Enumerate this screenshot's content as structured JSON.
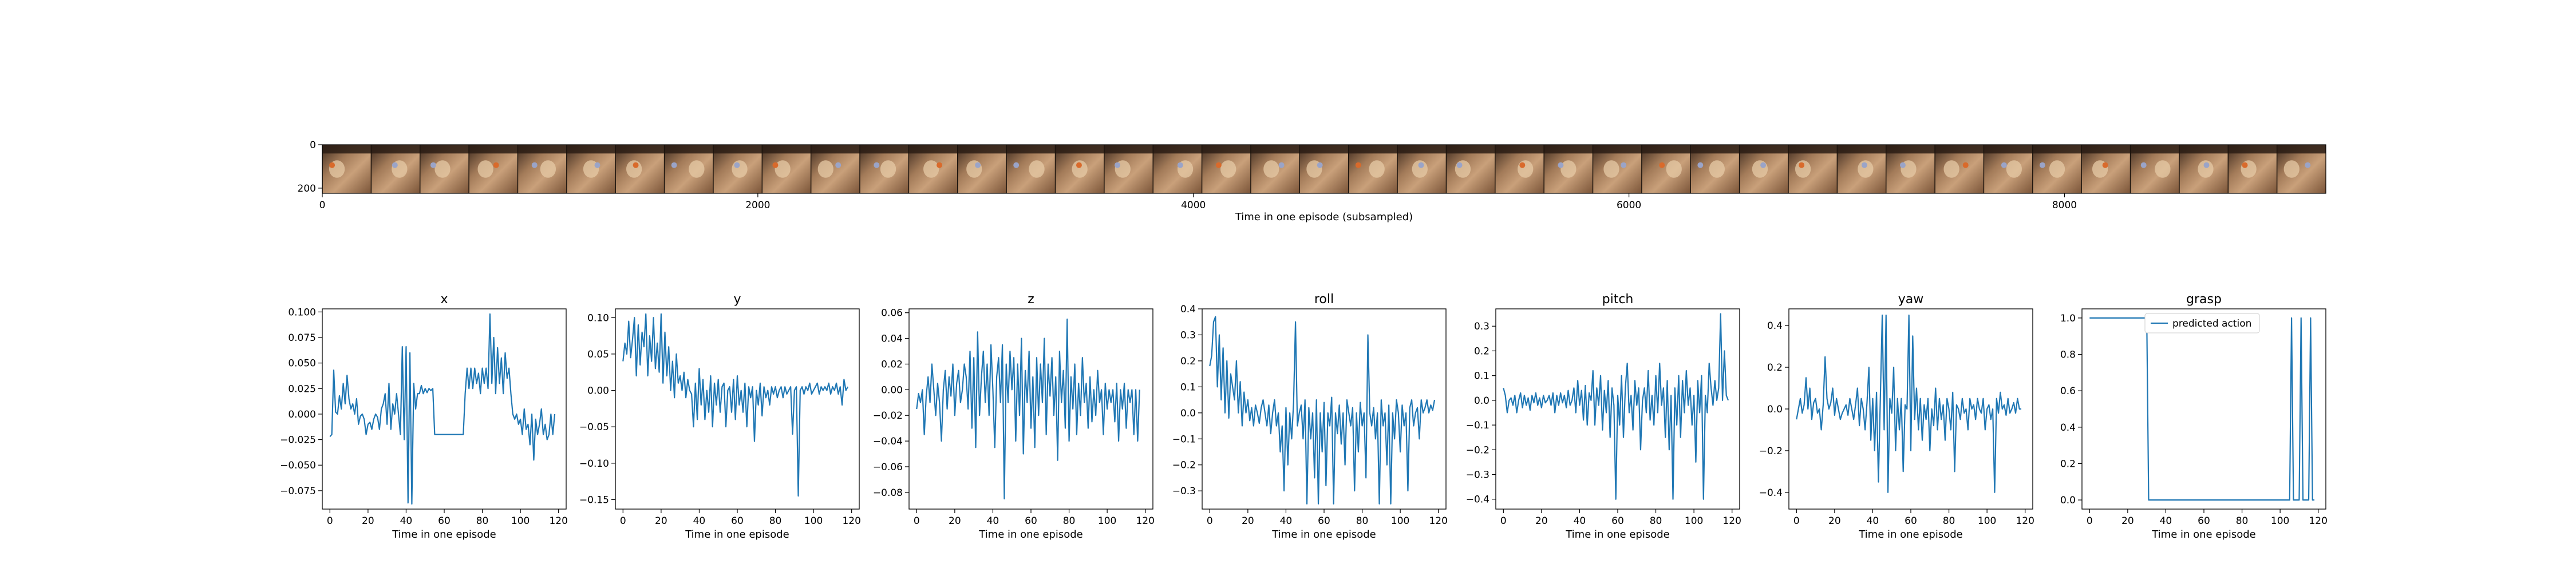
{
  "filmstrip": {
    "xlabel": "Time in one episode (subsampled)",
    "xticks": [
      0,
      2000,
      4000,
      6000,
      8000
    ],
    "yticks": [
      0,
      200
    ],
    "xlim": [
      0,
      9200
    ],
    "ylim": [
      0,
      224
    ],
    "frames": 41
  },
  "chart_data": [
    {
      "type": "line",
      "title": "x",
      "xlabel": "Time in one episode",
      "xticks": [
        0,
        20,
        40,
        60,
        80,
        100,
        120
      ],
      "xlim": [
        -4,
        124
      ],
      "ylim": [
        -0.093,
        0.103
      ],
      "yticks": [
        -0.075,
        -0.05,
        -0.025,
        0.0,
        0.025,
        0.05,
        0.075,
        0.1
      ],
      "ytick_labels": [
        "−0.075",
        "−0.050",
        "−0.025",
        "0.000",
        "0.025",
        "0.050",
        "0.075",
        "0.100"
      ],
      "series": [
        {
          "values": [
            -0.022,
            -0.02,
            0.043,
            0.002,
            0.0,
            0.018,
            0.005,
            0.03,
            0.01,
            0.038,
            0.015,
            0.005,
            0.01,
            0.0,
            0.015,
            -0.01,
            -0.002,
            0.0,
            -0.005,
            -0.02,
            -0.01,
            -0.008,
            -0.015,
            -0.005,
            0.0,
            -0.003,
            -0.015,
            0.005,
            0.01,
            0.02,
            -0.01,
            0.03,
            -0.015,
            0.01,
            0.0,
            0.02,
            0.0,
            -0.02,
            0.066,
            -0.025,
            0.066,
            -0.087,
            0.06,
            -0.088,
            0.03,
            0.005,
            0.02,
            0.02,
            0.028,
            0.02,
            0.025,
            0.021,
            0.025,
            0.023,
            0.025,
            -0.02,
            -0.02,
            -0.02,
            -0.02,
            -0.02,
            -0.02,
            -0.02,
            -0.02,
            -0.02,
            -0.02,
            -0.02,
            -0.02,
            -0.02,
            -0.02,
            -0.02,
            -0.02,
            0.02,
            0.045,
            0.025,
            0.045,
            0.025,
            0.045,
            0.03,
            0.04,
            0.02,
            0.045,
            0.03,
            0.045,
            0.025,
            0.098,
            0.03,
            0.075,
            0.02,
            0.065,
            0.03,
            0.055,
            0.02,
            0.06,
            0.035,
            0.045,
            0.02,
            0.0,
            -0.005,
            0.0,
            -0.01,
            -0.005,
            -0.02,
            0.005,
            -0.015,
            -0.01,
            -0.03,
            0.0,
            -0.045,
            -0.005,
            -0.02,
            -0.01,
            0.005,
            -0.02,
            -0.01,
            -0.025,
            -0.02,
            0.0,
            -0.02,
            0.0
          ]
        }
      ]
    },
    {
      "type": "line",
      "title": "y",
      "xlabel": "Time in one episode",
      "xticks": [
        0,
        20,
        40,
        60,
        80,
        100,
        120
      ],
      "xlim": [
        -4,
        124
      ],
      "ylim": [
        -0.163,
        0.112
      ],
      "yticks": [
        -0.15,
        -0.1,
        -0.05,
        0.0,
        0.05,
        0.1
      ],
      "ytick_labels": [
        "−0.15",
        "−0.10",
        "−0.05",
        "0.00",
        "0.05",
        "0.10"
      ],
      "series": [
        {
          "values": [
            0.04,
            0.065,
            0.05,
            0.095,
            0.045,
            0.07,
            0.1,
            0.02,
            0.09,
            0.035,
            0.08,
            0.06,
            0.105,
            0.02,
            0.075,
            0.04,
            0.1,
            0.03,
            0.065,
            0.025,
            0.105,
            0.01,
            0.08,
            0.02,
            0.06,
            0.0,
            0.04,
            -0.01,
            0.05,
            0.01,
            0.02,
            0.0,
            0.025,
            -0.01,
            0.015,
            0.0,
            -0.005,
            -0.05,
            0.01,
            -0.04,
            0.03,
            -0.02,
            0.015,
            -0.04,
            0.0,
            -0.03,
            0.02,
            -0.05,
            0.01,
            -0.02,
            0.015,
            -0.03,
            0.005,
            0.01,
            -0.05,
            0.0,
            0.005,
            -0.03,
            0.015,
            -0.04,
            0.02,
            -0.02,
            0.0,
            -0.03,
            0.01,
            -0.05,
            0.005,
            -0.01,
            0.005,
            -0.07,
            0.0,
            -0.02,
            0.01,
            -0.035,
            0.005,
            -0.01,
            0.0,
            -0.02,
            0.005,
            -0.005,
            0.005,
            -0.01,
            0.0,
            0.005,
            -0.01,
            0.005,
            -0.005,
            0.0,
            0.005,
            -0.06,
            0.0,
            0.005,
            -0.145,
            0.0,
            0.005,
            -0.005,
            0.005,
            0.0,
            0.01,
            -0.005,
            0.0,
            0.005,
            0.01,
            -0.005,
            0.005,
            0.0,
            0.005,
            0.0,
            0.01,
            -0.005,
            0.005,
            0.0,
            0.01,
            -0.005,
            0.005,
            -0.02,
            0.015,
            0.0,
            0.005
          ]
        }
      ]
    },
    {
      "type": "line",
      "title": "z",
      "xlabel": "Time in one episode",
      "xticks": [
        0,
        20,
        40,
        60,
        80,
        100,
        120
      ],
      "xlim": [
        -4,
        124
      ],
      "ylim": [
        -0.093,
        0.063
      ],
      "yticks": [
        -0.08,
        -0.06,
        -0.04,
        -0.02,
        0.0,
        0.02,
        0.04,
        0.06
      ],
      "ytick_labels": [
        "−0.08",
        "−0.06",
        "−0.04",
        "−0.02",
        "0.00",
        "0.02",
        "0.04",
        "0.06"
      ],
      "series": [
        {
          "values": [
            -0.015,
            -0.003,
            -0.01,
            0.0,
            -0.035,
            -0.005,
            0.01,
            -0.01,
            0.02,
            0.0,
            -0.02,
            0.005,
            -0.01,
            -0.04,
            0.0,
            0.015,
            -0.015,
            0.01,
            -0.005,
            0.02,
            -0.02,
            0.005,
            0.015,
            -0.01,
            0.0,
            0.02,
            0.01,
            -0.015,
            0.03,
            -0.03,
            0.025,
            -0.045,
            0.045,
            -0.02,
            0.01,
            0.03,
            -0.01,
            0.02,
            -0.02,
            0.035,
            0.0,
            -0.045,
            0.01,
            0.025,
            -0.01,
            0.035,
            -0.085,
            0.02,
            -0.01,
            0.03,
            0.0,
            0.025,
            -0.04,
            0.02,
            -0.02,
            0.04,
            -0.05,
            0.015,
            -0.01,
            0.03,
            -0.03,
            0.01,
            -0.045,
            0.025,
            -0.02,
            0.02,
            -0.01,
            0.04,
            -0.035,
            0.02,
            -0.005,
            0.025,
            -0.02,
            0.01,
            -0.055,
            0.03,
            -0.01,
            0.015,
            -0.03,
            0.055,
            -0.04,
            0.01,
            -0.015,
            0.02,
            -0.035,
            0.005,
            -0.02,
            0.025,
            -0.01,
            0.005,
            -0.03,
            0.01,
            -0.025,
            0.0,
            -0.02,
            0.015,
            -0.01,
            0.0,
            -0.035,
            0.005,
            -0.015,
            0.0,
            -0.01,
            0.0,
            -0.025,
            0.005,
            -0.04,
            0.0,
            -0.015,
            0.005,
            -0.03,
            0.0,
            -0.01,
            0.0,
            -0.035,
            0.0,
            -0.04,
            0.0
          ]
        }
      ]
    },
    {
      "type": "line",
      "title": "roll",
      "xlabel": "Time in one episode",
      "xticks": [
        0,
        20,
        40,
        60,
        80,
        100,
        120
      ],
      "xlim": [
        -4,
        124
      ],
      "ylim": [
        -0.37,
        0.4
      ],
      "yticks": [
        -0.3,
        -0.2,
        -0.1,
        0.0,
        0.1,
        0.2,
        0.3,
        0.4
      ],
      "ytick_labels": [
        "−0.3",
        "−0.2",
        "−0.1",
        "0.0",
        "0.1",
        "0.2",
        "0.3",
        "0.4"
      ],
      "series": [
        {
          "values": [
            0.18,
            0.22,
            0.35,
            0.37,
            0.1,
            0.3,
            0.05,
            0.25,
            0.0,
            0.2,
            -0.02,
            0.15,
            0.1,
            0.05,
            0.2,
            0.0,
            0.12,
            -0.05,
            0.08,
            0.0,
            0.05,
            -0.03,
            0.02,
            -0.05,
            0.03,
            0.0,
            -0.04,
            0.02,
            0.05,
            0.0,
            -0.05,
            0.03,
            -0.08,
            0.0,
            0.05,
            -0.05,
            0.0,
            -0.15,
            -0.05,
            -0.3,
            0.02,
            -0.2,
            0.0,
            -0.1,
            0.04,
            0.35,
            -0.05,
            0.0,
            0.03,
            -0.1,
            0.05,
            -0.35,
            0.02,
            -0.1,
            0.0,
            -0.25,
            0.05,
            -0.35,
            0.0,
            -0.15,
            0.04,
            -0.28,
            0.0,
            -0.05,
            0.06,
            -0.35,
            0.0,
            -0.08,
            0.03,
            -0.12,
            0.0,
            -0.2,
            0.05,
            0.0,
            -0.05,
            0.02,
            -0.3,
            0.0,
            -0.15,
            0.04,
            -0.05,
            0.0,
            -0.25,
            0.3,
            0.0,
            -0.05,
            0.02,
            -0.1,
            0.0,
            -0.35,
            0.05,
            -0.05,
            0.0,
            -0.2,
            0.03,
            -0.35,
            0.0,
            -0.1,
            0.05,
            0.0,
            -0.15,
            0.03,
            -0.05,
            0.0,
            -0.3,
            0.02,
            0.05,
            -0.05,
            0.0,
            0.02,
            -0.1,
            0.05,
            0.0,
            0.02,
            0.05,
            0.0,
            0.03,
            0.01,
            0.05
          ]
        }
      ]
    },
    {
      "type": "line",
      "title": "pitch",
      "xlabel": "Time in one episode",
      "xticks": [
        0,
        20,
        40,
        60,
        80,
        100,
        120
      ],
      "xlim": [
        -4,
        124
      ],
      "ylim": [
        -0.44,
        0.37
      ],
      "yticks": [
        -0.4,
        -0.3,
        -0.2,
        -0.1,
        0.0,
        0.1,
        0.2,
        0.3
      ],
      "ytick_labels": [
        "−0.4",
        "−0.3",
        "−0.2",
        "−0.1",
        "0.0",
        "0.1",
        "0.2",
        "0.3"
      ],
      "series": [
        {
          "values": [
            0.05,
            0.02,
            -0.05,
            0.0,
            0.01,
            -0.02,
            0.02,
            -0.05,
            0.0,
            0.03,
            -0.03,
            0.02,
            -0.02,
            0.01,
            -0.04,
            0.02,
            -0.01,
            0.03,
            -0.02,
            0.01,
            -0.03,
            0.02,
            -0.01,
            0.0,
            0.02,
            -0.02,
            0.03,
            -0.05,
            0.02,
            -0.02,
            0.03,
            -0.01,
            0.02,
            -0.03,
            0.04,
            -0.02,
            0.0,
            0.05,
            -0.05,
            0.08,
            -0.02,
            0.04,
            -0.08,
            0.06,
            -0.1,
            0.03,
            0.0,
            0.12,
            -0.1,
            0.05,
            -0.02,
            0.1,
            -0.12,
            0.04,
            -0.05,
            0.08,
            -0.15,
            0.05,
            -0.02,
            -0.4,
            0.02,
            -0.1,
            0.1,
            -0.15,
            0.05,
            0.15,
            -0.05,
            0.02,
            -0.12,
            0.08,
            -0.02,
            0.05,
            -0.2,
            0.0,
            0.05,
            -0.05,
            0.12,
            -0.08,
            0.02,
            -0.1,
            0.1,
            -0.05,
            0.15,
            -0.02,
            0.05,
            -0.15,
            0.08,
            -0.2,
            0.02,
            -0.4,
            0.05,
            -0.1,
            0.1,
            -0.15,
            0.08,
            -0.05,
            0.12,
            -0.02,
            0.05,
            -0.1,
            0.02,
            -0.25,
            0.08,
            -0.05,
            0.1,
            -0.4,
            0.02,
            -0.05,
            0.15,
            0.05,
            -0.02,
            0.08,
            0.0,
            0.05,
            0.35,
            0.0,
            0.2,
            0.02,
            0.0
          ]
        }
      ]
    },
    {
      "type": "line",
      "title": "yaw",
      "xlabel": "Time in one episode",
      "xticks": [
        0,
        20,
        40,
        60,
        80,
        100,
        120
      ],
      "xlim": [
        -4,
        124
      ],
      "ylim": [
        -0.48,
        0.48
      ],
      "yticks": [
        -0.4,
        -0.2,
        0.0,
        0.2,
        0.4
      ],
      "ytick_labels": [
        "−0.4",
        "−0.2",
        "0.0",
        "0.2",
        "0.4"
      ],
      "series": [
        {
          "values": [
            -0.05,
            0.0,
            0.05,
            -0.02,
            0.02,
            0.15,
            0.0,
            0.1,
            -0.05,
            0.03,
            0.05,
            -0.02,
            0.0,
            -0.1,
            0.02,
            0.25,
            0.05,
            0.0,
            0.03,
            0.1,
            -0.03,
            0.05,
            0.0,
            -0.05,
            -0.02,
            0.0,
            0.02,
            -0.03,
            0.05,
            0.0,
            -0.05,
            0.02,
            0.1,
            -0.08,
            0.05,
            0.0,
            -0.1,
            0.03,
            0.2,
            -0.15,
            0.05,
            -0.2,
            0.08,
            -0.35,
            0.05,
            0.45,
            -0.1,
            0.45,
            -0.4,
            0.05,
            -0.02,
            0.2,
            -0.2,
            0.05,
            -0.1,
            0.05,
            -0.3,
            0.02,
            0.0,
            0.45,
            -0.2,
            0.35,
            -0.05,
            0.1,
            -0.1,
            0.05,
            -0.15,
            0.02,
            -0.05,
            0.05,
            -0.2,
            0.0,
            -0.08,
            0.1,
            -0.1,
            0.05,
            -0.05,
            0.02,
            -0.15,
            0.05,
            0.0,
            -0.1,
            0.08,
            -0.3,
            0.02,
            0.0,
            -0.05,
            0.05,
            -0.02,
            0.0,
            -0.1,
            0.05,
            0.0,
            0.02,
            -0.05,
            0.05,
            0.0,
            -0.02,
            0.05,
            -0.1,
            0.0,
            0.02,
            -0.05,
            0.0,
            -0.4,
            0.05,
            -0.02,
            0.08,
            0.0,
            0.02,
            -0.03,
            0.05,
            -0.02,
            0.0,
            0.03,
            -0.02,
            0.05,
            0.0,
            0.0
          ]
        }
      ]
    },
    {
      "type": "line",
      "title": "grasp",
      "xlabel": "Time in one episode",
      "xticks": [
        0,
        20,
        40,
        60,
        80,
        100,
        120
      ],
      "xlim": [
        -4,
        124
      ],
      "ylim": [
        -0.05,
        1.05
      ],
      "yticks": [
        0.0,
        0.2,
        0.4,
        0.6,
        0.8,
        1.0
      ],
      "ytick_labels": [
        "0.0",
        "0.2",
        "0.4",
        "0.6",
        "0.8",
        "1.0"
      ],
      "legend": {
        "label": "predicted action",
        "position": "upper-center"
      },
      "series": [
        {
          "name": "predicted action",
          "values": [
            1,
            1,
            1,
            1,
            1,
            1,
            1,
            1,
            1,
            1,
            1,
            1,
            1,
            1,
            1,
            1,
            1,
            1,
            1,
            1,
            1,
            1,
            1,
            1,
            1,
            1,
            1,
            1,
            1,
            1,
            1,
            0,
            0,
            0,
            0,
            0,
            0,
            0,
            0,
            0,
            0,
            0,
            0,
            0,
            0,
            0,
            0,
            0,
            0,
            0,
            0,
            0,
            0,
            0,
            0,
            0,
            0,
            0,
            0,
            0,
            0,
            0,
            0,
            0,
            0,
            0,
            0,
            0,
            0,
            0,
            0,
            0,
            0,
            0,
            0,
            0,
            0,
            0,
            0,
            0,
            0,
            0,
            0,
            0,
            0,
            0,
            0,
            0,
            0,
            0,
            0,
            0,
            0,
            0,
            0,
            0,
            0,
            0,
            0,
            0,
            0,
            0,
            0,
            0,
            0,
            0,
            1,
            0,
            0,
            0,
            0,
            1,
            0,
            0,
            0,
            0,
            1,
            0,
            0
          ]
        }
      ]
    }
  ],
  "colors": {
    "line": "#1f77b4",
    "axis": "#000000"
  }
}
